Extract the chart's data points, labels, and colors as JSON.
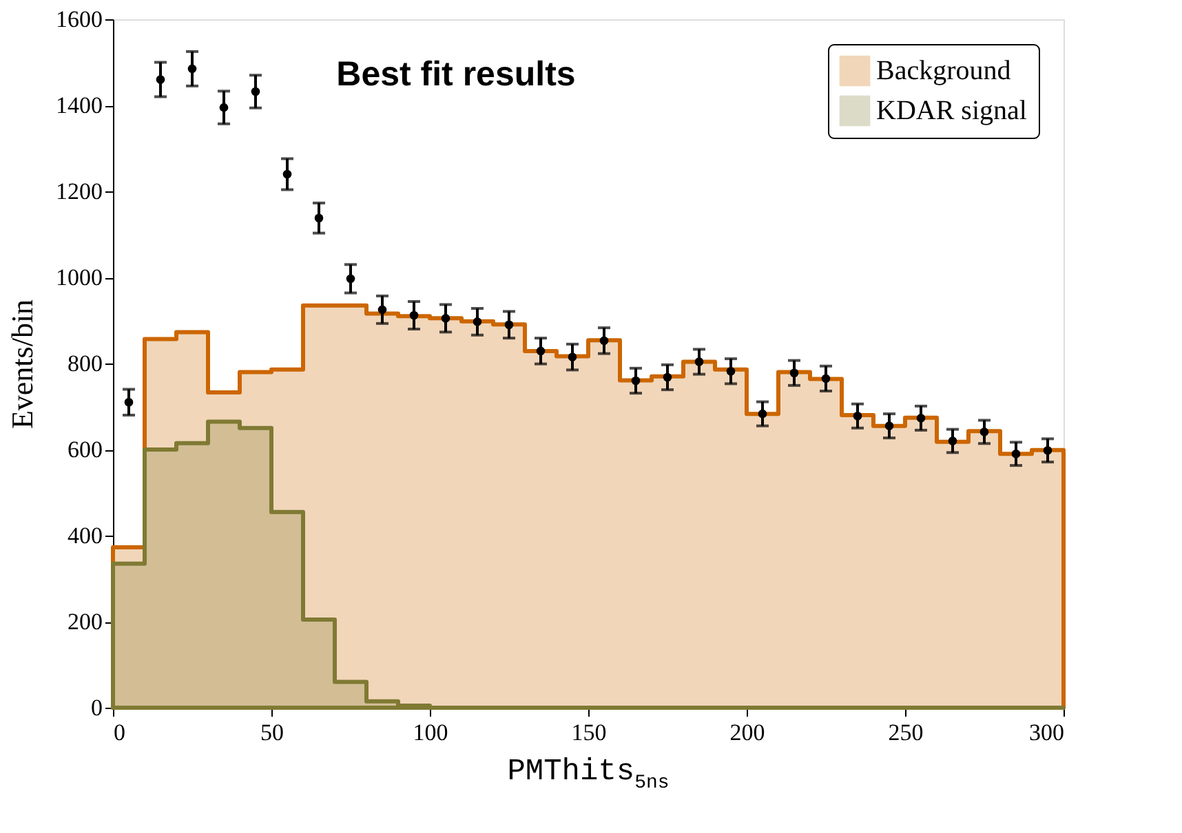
{
  "chart_data": {
    "type": "area",
    "title": "Best fit results",
    "xlabel": "PMThits$_{5ns}$",
    "ylabel": "Events/bin",
    "x": [
      0,
      10,
      20,
      30,
      40,
      50,
      60,
      70,
      80,
      90,
      100,
      110,
      120,
      130,
      140,
      150,
      160,
      170,
      180,
      190,
      200,
      210,
      220,
      230,
      240,
      250,
      260,
      270,
      280,
      290,
      300
    ],
    "series": [
      {
        "name": "Background",
        "color": "#cc6600",
        "values": [
          373,
          857,
          873,
          733,
          780,
          786,
          935,
          935,
          916,
          910,
          905,
          898,
          891,
          829,
          817,
          854,
          761,
          770,
          804,
          786,
          683,
          780,
          764,
          680,
          655,
          674,
          618,
          643,
          590,
          599,
          599
        ]
      },
      {
        "name": "KDAR signal",
        "color": "#7f7a33",
        "values": [
          335,
          600,
          615,
          665,
          650,
          455,
          205,
          60,
          15,
          5,
          0,
          0,
          0,
          0,
          0,
          0,
          0,
          0,
          0,
          0,
          0,
          0,
          0,
          0,
          0,
          0,
          0,
          0,
          0,
          0,
          0
        ]
      },
      {
        "type": "scatter",
        "marker": "circle",
        "color": "#000000",
        "x": [
          5,
          15,
          25,
          35,
          45,
          55,
          65,
          75,
          85,
          95,
          105,
          115,
          125,
          135,
          145,
          155,
          165,
          175,
          185,
          195,
          205,
          215,
          225,
          235,
          245,
          255,
          265,
          275,
          285,
          295
        ],
        "values": [
          710,
          1460,
          1485,
          1395,
          1432,
          1240,
          1138,
          997,
          925,
          912,
          905,
          897,
          890,
          829,
          815,
          853,
          760,
          768,
          804,
          782,
          683,
          778,
          765,
          678,
          655,
          673,
          620,
          641,
          590,
          598
        ],
        "errors": [
          30,
          40,
          40,
          38,
          38,
          36,
          35,
          33,
          32,
          32,
          32,
          31,
          31,
          30,
          30,
          30,
          29,
          29,
          29,
          29,
          28,
          29,
          29,
          28,
          28,
          28,
          27,
          27,
          27,
          27
        ]
      }
    ],
    "xlim": [
      0,
      300
    ],
    "xticks": [
      0,
      50,
      100,
      150,
      200,
      250,
      300
    ],
    "ylim": [
      0,
      1600
    ],
    "yticks": [
      0,
      200,
      400,
      600,
      800,
      1000,
      1200,
      1400,
      1600
    ],
    "legend": "top right",
    "grid": false
  }
}
